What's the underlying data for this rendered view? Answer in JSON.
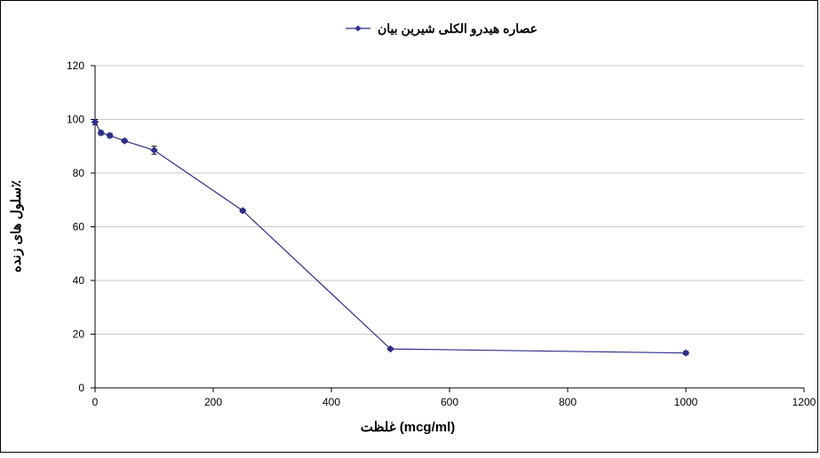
{
  "chart_data": {
    "type": "line",
    "title": "",
    "xlabel": "غلظت (mcg/ml)",
    "ylabel": "سلول های زنده٪",
    "xlim": [
      0,
      1200
    ],
    "ylim": [
      0,
      120
    ],
    "x_ticks": [
      0,
      200,
      400,
      600,
      800,
      1000,
      1200
    ],
    "y_ticks": [
      0,
      20,
      40,
      60,
      80,
      100,
      120
    ],
    "grid": "horizontal",
    "legend_position": "top-center",
    "series": [
      {
        "name": "عصاره هیدرو الکلی شیرین بیان",
        "color": "#2e2e8c",
        "marker": "diamond",
        "x": [
          0,
          10,
          25,
          50,
          100,
          250,
          500,
          1000
        ],
        "y": [
          99,
          95,
          94,
          92,
          88.5,
          66,
          14.5,
          13
        ],
        "error": [
          1,
          0.8,
          0.8,
          0.6,
          1.5,
          0.6,
          0.5,
          0.6
        ]
      }
    ]
  }
}
